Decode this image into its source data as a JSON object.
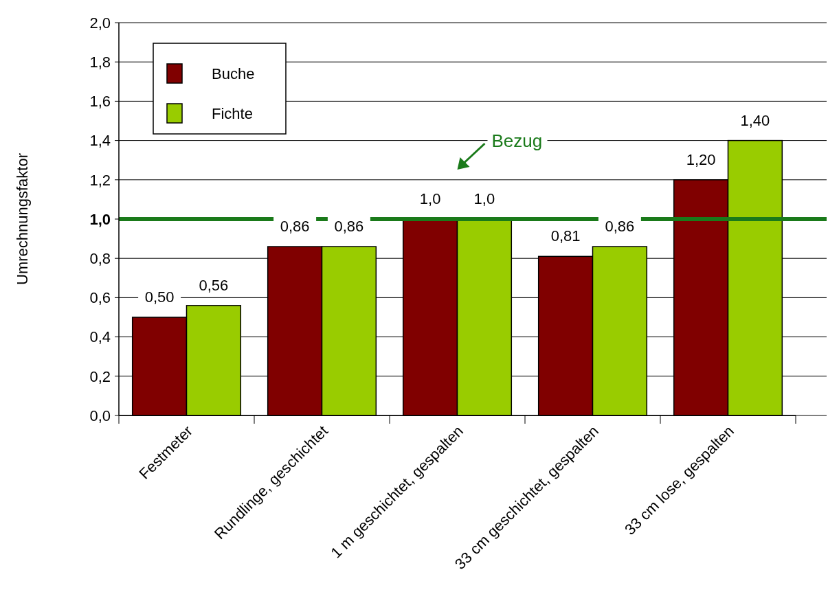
{
  "chart_data": {
    "type": "bar",
    "ylabel": "Umrechnungsfaktor",
    "categories": [
      "Festmeter",
      "Rundlinge, geschichtet",
      "1 m geschichtet, gespalten",
      "33 cm geschichtet, gespalten",
      "33 cm lose, gespalten"
    ],
    "series": [
      {
        "name": "Buche",
        "color": "#800000",
        "values": [
          0.5,
          0.86,
          1.0,
          0.81,
          1.2
        ],
        "value_labels": [
          "0,50",
          "0,86",
          "1,0",
          "0,81",
          "1,20"
        ]
      },
      {
        "name": "Fichte",
        "color": "#99cc00",
        "values": [
          0.56,
          0.86,
          1.0,
          0.86,
          1.4
        ],
        "value_labels": [
          "0,56",
          "0,86",
          "1,0",
          "0,86",
          "1,40"
        ]
      }
    ],
    "ylim": [
      0,
      2
    ],
    "yticks": [
      {
        "value": 0,
        "label": "0,0"
      },
      {
        "value": 0.2,
        "label": "0,2"
      },
      {
        "value": 0.4,
        "label": "0,4"
      },
      {
        "value": 0.6,
        "label": "0,6"
      },
      {
        "value": 0.8,
        "label": "0,8"
      },
      {
        "value": 1,
        "label": "1,0"
      },
      {
        "value": 1.2,
        "label": "1,2"
      },
      {
        "value": 1.4,
        "label": "1,4"
      },
      {
        "value": 1.6,
        "label": "1,6"
      },
      {
        "value": 1.8,
        "label": "1,8"
      },
      {
        "value": 2,
        "label": "2,0"
      }
    ],
    "grid": "y",
    "legend": "top left",
    "ref_lines": [
      {
        "axis": "y",
        "value": 1,
        "label": "Bezug",
        "color": "#1a7a1a"
      }
    ]
  }
}
